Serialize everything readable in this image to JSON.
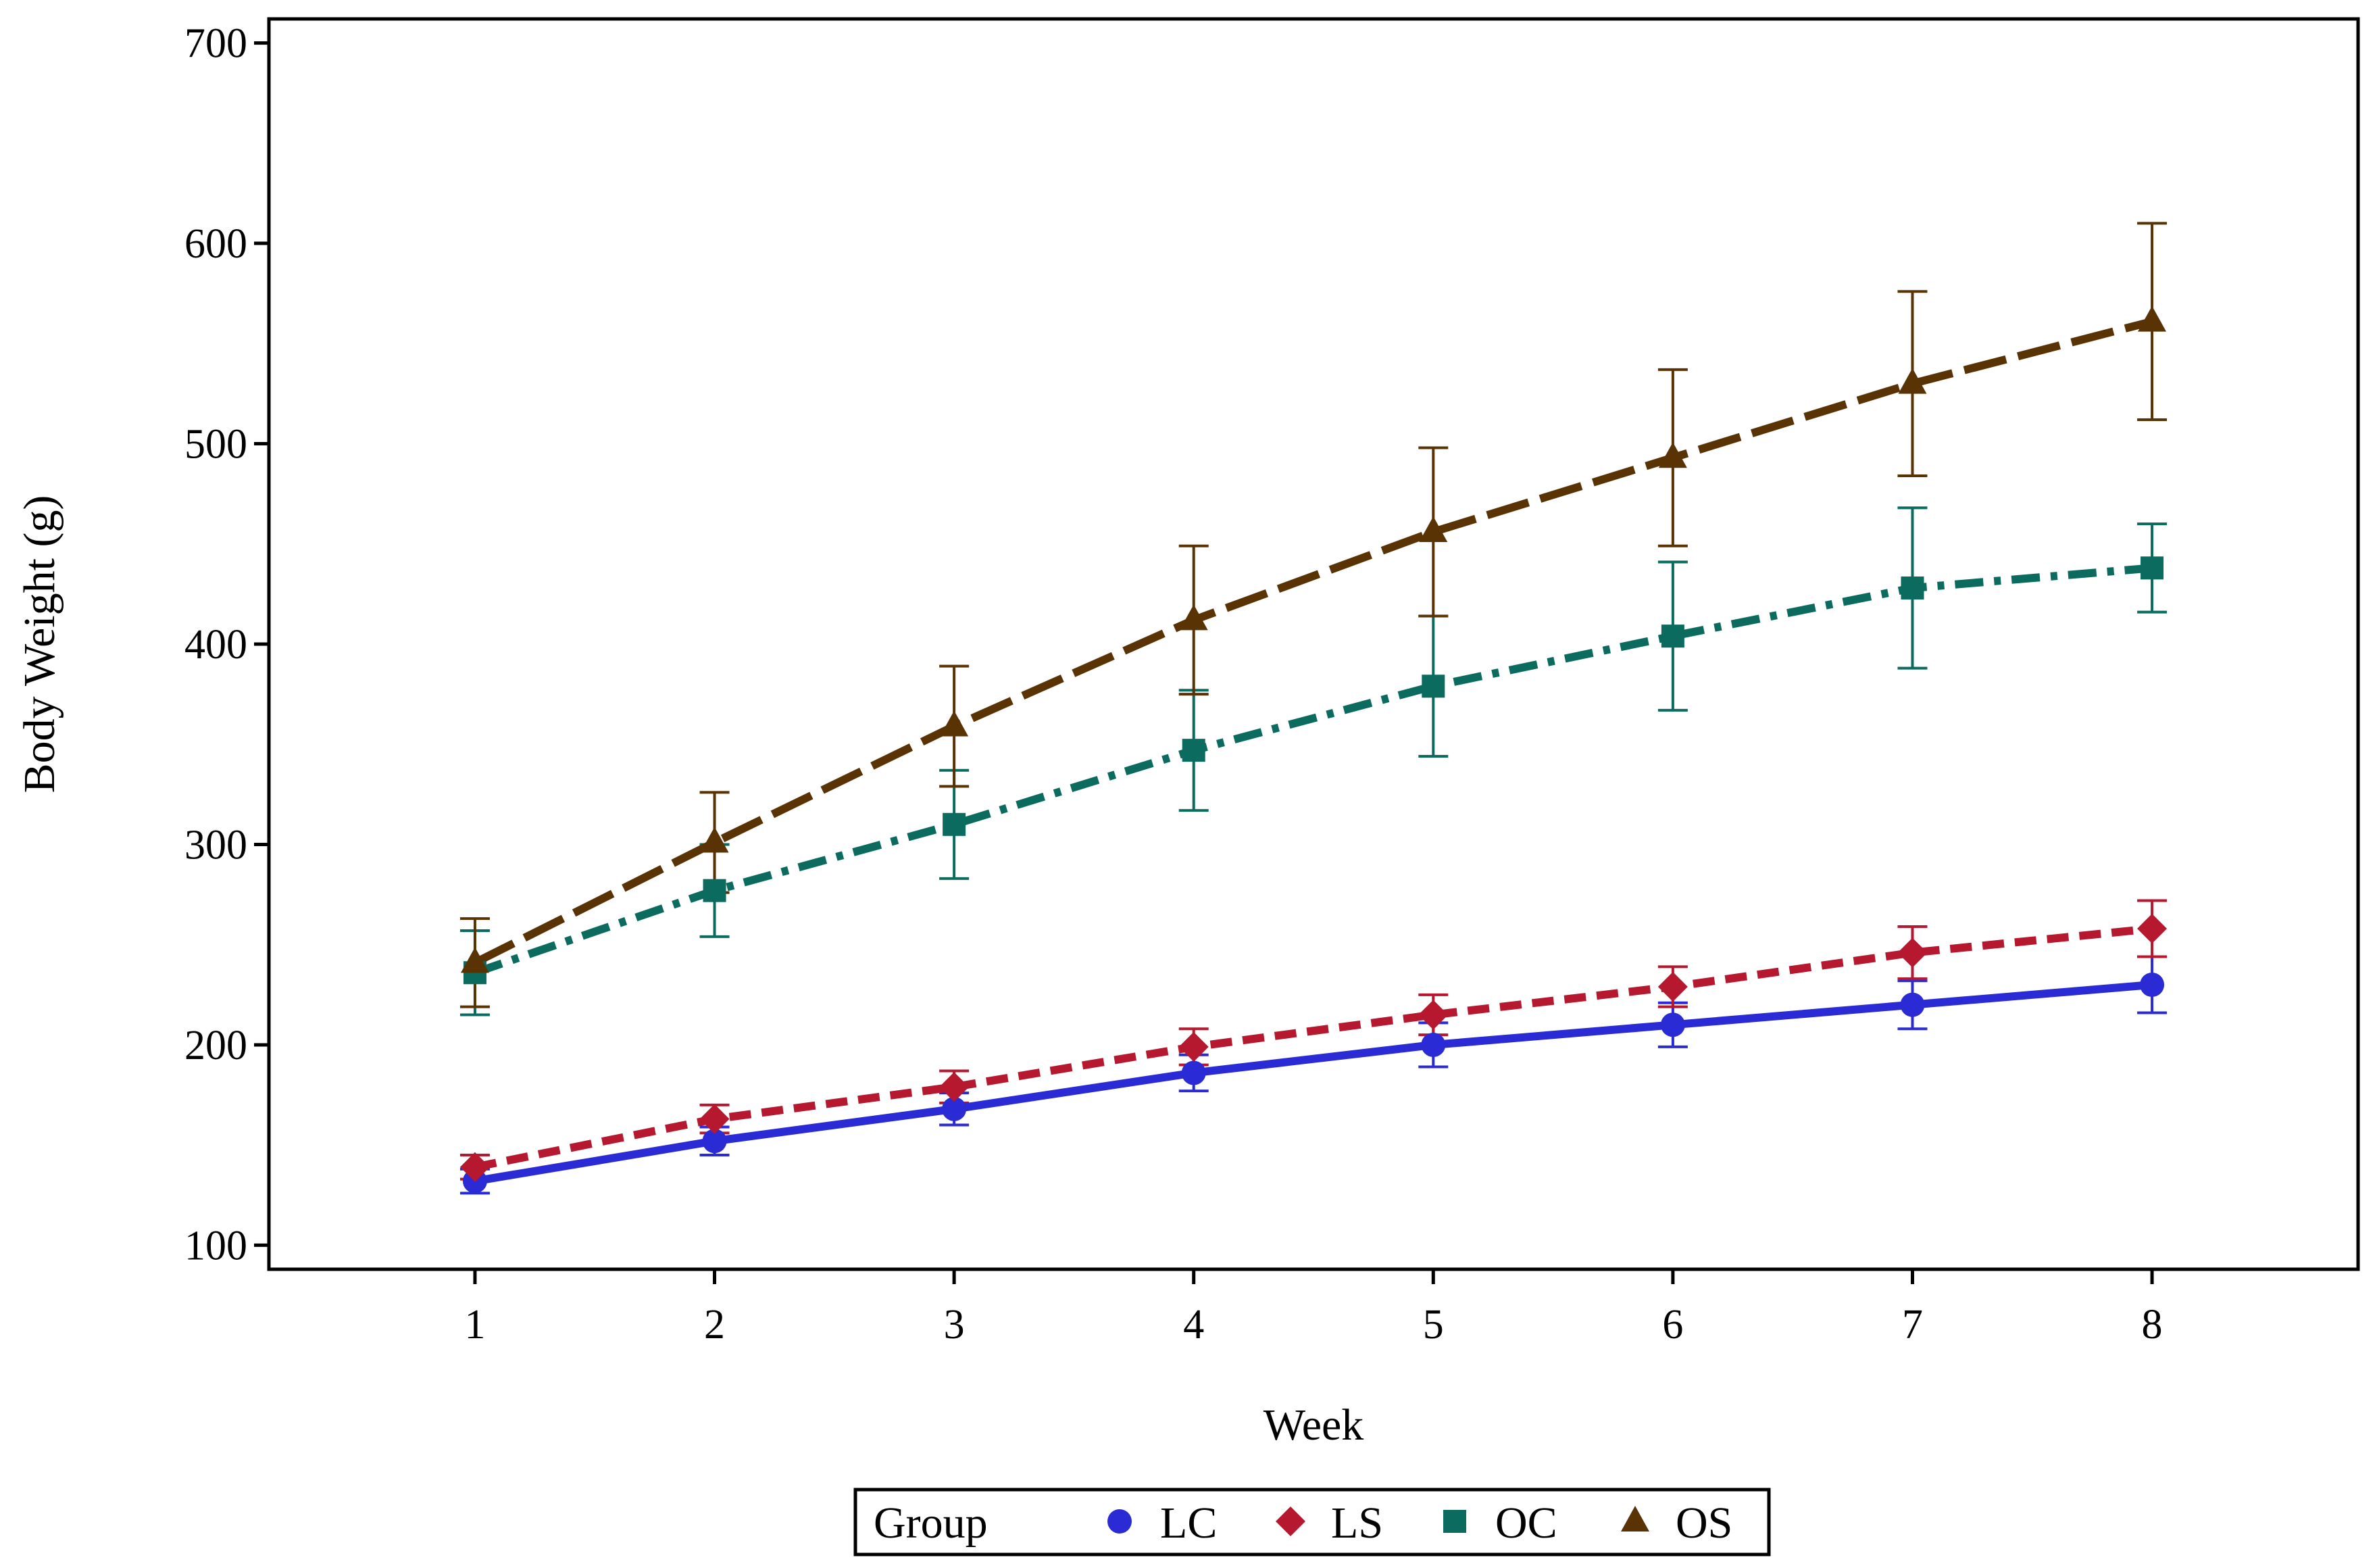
{
  "chart_data": {
    "type": "line",
    "title": "",
    "xlabel": "Week",
    "ylabel": "Body Weight (g)",
    "x": [
      1,
      2,
      3,
      4,
      5,
      6,
      7,
      8
    ],
    "xlim": [
      0.14,
      8.86
    ],
    "ylim": [
      88,
      712
    ],
    "xticks": [
      1,
      2,
      3,
      4,
      5,
      6,
      7,
      8
    ],
    "yticks": [
      100,
      200,
      300,
      400,
      500,
      600,
      700
    ],
    "grid": false,
    "legend": {
      "title": "Group",
      "position": "bottom-center"
    },
    "series": [
      {
        "name": "LC",
        "color": "#2b2bd6",
        "marker": "circle",
        "dash": "solid",
        "values": [
          132,
          152,
          168,
          186,
          200,
          210,
          220,
          230
        ],
        "err": [
          6,
          7,
          8,
          9,
          11,
          11,
          12,
          14
        ]
      },
      {
        "name": "LS",
        "color": "#b5182f",
        "marker": "diamond",
        "dash": "dash",
        "values": [
          139,
          163,
          179,
          199,
          215,
          229,
          246,
          258
        ],
        "err": [
          6,
          7,
          8,
          9,
          10,
          10,
          13,
          14
        ]
      },
      {
        "name": "OC",
        "color": "#0b6b5f",
        "marker": "square",
        "dash": "dashdot",
        "values": [
          236,
          277,
          310,
          347,
          379,
          404,
          428,
          438
        ],
        "err": [
          21,
          23,
          27,
          30,
          35,
          37,
          40,
          22
        ]
      },
      {
        "name": "OS",
        "color": "#5a3305",
        "marker": "triangle",
        "dash": "longdash",
        "values": [
          241,
          301,
          359,
          412,
          456,
          493,
          530,
          561
        ],
        "err": [
          22,
          25,
          30,
          37,
          42,
          44,
          46,
          49
        ]
      }
    ]
  }
}
